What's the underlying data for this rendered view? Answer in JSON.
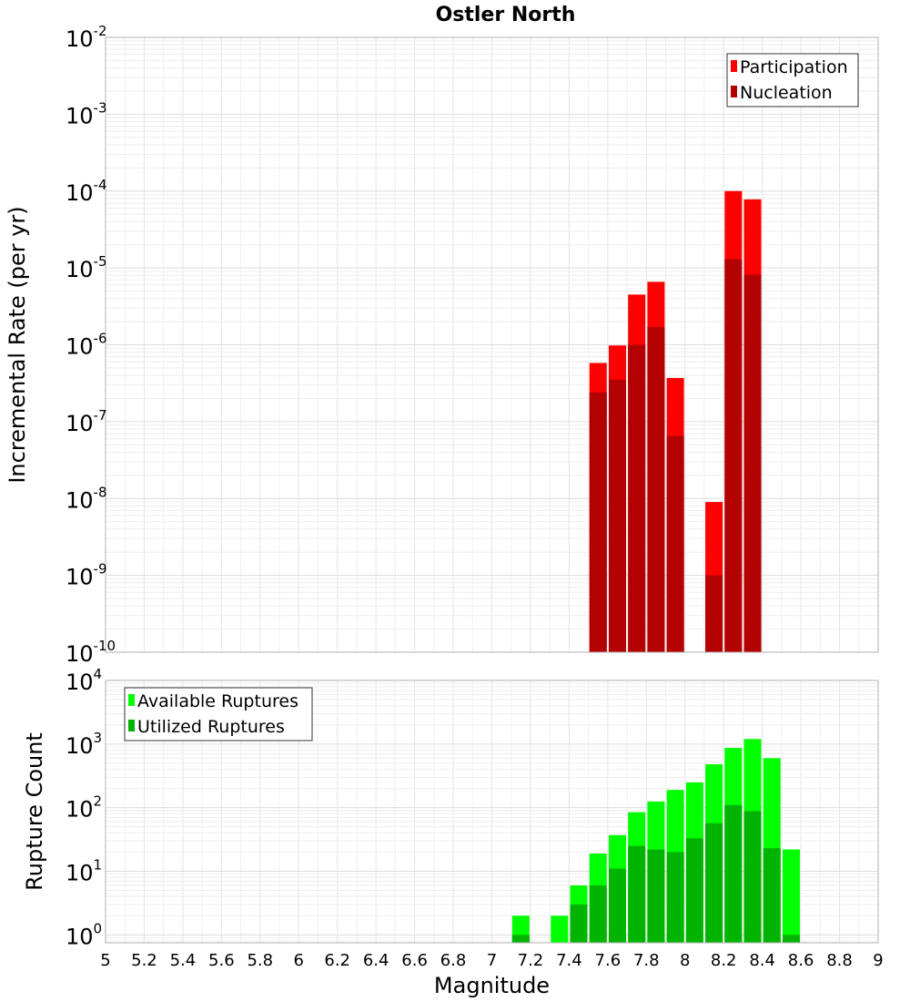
{
  "chart_data": [
    {
      "type": "bar",
      "title": "Ostler North",
      "xlabel": "",
      "ylabel": "Incremental Rate (per yr)",
      "yscale": "log",
      "xlim": [
        5,
        9
      ],
      "ylim": [
        1e-10,
        0.01
      ],
      "y_ticks": [
        {
          "base": "10",
          "exp": "-2"
        },
        {
          "base": "10",
          "exp": "-3"
        },
        {
          "base": "10",
          "exp": "-4"
        },
        {
          "base": "10",
          "exp": "-5"
        },
        {
          "base": "10",
          "exp": "-6"
        },
        {
          "base": "10",
          "exp": "-7"
        },
        {
          "base": "10",
          "exp": "-8"
        },
        {
          "base": "10",
          "exp": "-9"
        },
        {
          "base": "10",
          "exp": "-10"
        }
      ],
      "grid": true,
      "legend_position": "top-right",
      "x": [
        7.55,
        7.65,
        7.75,
        7.85,
        7.95,
        8.15,
        8.25,
        8.35
      ],
      "series": [
        {
          "name": "Participation",
          "color": "#ff0000",
          "values": [
            5.8e-07,
            9.8e-07,
            4.5e-06,
            6.6e-06,
            3.7e-07,
            9e-09,
            0.0001,
            7.8e-05
          ]
        },
        {
          "name": "Nucleation",
          "color": "#b30000",
          "values": [
            2.4e-07,
            3.5e-07,
            1e-06,
            1.7e-06,
            6.5e-08,
            1e-09,
            1.3e-05,
            8.2e-06
          ]
        }
      ]
    },
    {
      "type": "bar",
      "title": "",
      "xlabel": "Magnitude",
      "ylabel": "Rupture Count",
      "yscale": "log",
      "xlim": [
        5,
        9
      ],
      "ylim": [
        0.75,
        10000.0
      ],
      "x_ticks": [
        "5",
        "5.2",
        "5.4",
        "5.6",
        "5.8",
        "6",
        "6.2",
        "6.4",
        "6.6",
        "6.8",
        "7",
        "7.2",
        "7.4",
        "7.6",
        "7.8",
        "8",
        "8.2",
        "8.4",
        "8.6",
        "8.8",
        "9"
      ],
      "y_ticks": [
        {
          "base": "10",
          "exp": "4"
        },
        {
          "base": "10",
          "exp": "3"
        },
        {
          "base": "10",
          "exp": "2"
        },
        {
          "base": "10",
          "exp": "1"
        },
        {
          "base": "10",
          "exp": "0"
        }
      ],
      "grid": true,
      "legend_position": "top-left",
      "x": [
        7.15,
        7.35,
        7.45,
        7.55,
        7.65,
        7.75,
        7.85,
        7.95,
        8.05,
        8.15,
        8.25,
        8.35,
        8.45,
        8.55
      ],
      "series": [
        {
          "name": "Available Ruptures",
          "color": "#00ff00",
          "values": [
            2,
            2,
            6,
            19,
            37,
            85,
            125,
            190,
            250,
            480,
            870,
            1200,
            600,
            22
          ]
        },
        {
          "name": "Utilized Ruptures",
          "color": "#00b300",
          "values": [
            1,
            null,
            3,
            6,
            11,
            25,
            22,
            20,
            33,
            57,
            110,
            88,
            23,
            1
          ]
        }
      ]
    }
  ]
}
